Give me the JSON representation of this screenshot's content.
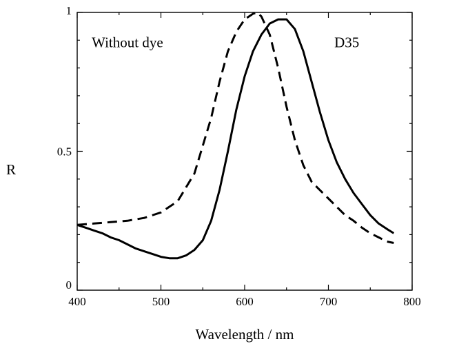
{
  "chart_data": {
    "type": "line",
    "title": "",
    "xlabel": "Wavelength / nm",
    "ylabel": "R",
    "xlim": [
      400,
      800
    ],
    "ylim": [
      0,
      1
    ],
    "x_ticks": [
      400,
      500,
      600,
      700,
      800
    ],
    "x_tick_labels": [
      "400",
      "500",
      "600",
      "700",
      "800"
    ],
    "y_ticks": [
      0,
      0.5,
      1
    ],
    "y_tick_labels": [
      "0",
      "0.5",
      "1"
    ],
    "grid": false,
    "legend": "none",
    "annotations": [
      {
        "text": "Without dye",
        "x": 460,
        "y": 0.875
      },
      {
        "text": "D35",
        "x": 722,
        "y": 0.875
      }
    ],
    "series": [
      {
        "style": "dashed",
        "color": "#000000",
        "x": [
          400,
          420,
          440,
          460,
          480,
          500,
          520,
          540,
          560,
          570,
          580,
          590,
          600,
          610,
          615,
          620,
          630,
          640,
          650,
          660,
          670,
          680,
          690,
          700,
          710,
          720,
          730,
          740,
          750,
          760,
          770,
          778
        ],
        "y": [
          0.235,
          0.24,
          0.245,
          0.25,
          0.26,
          0.28,
          0.32,
          0.42,
          0.62,
          0.75,
          0.86,
          0.93,
          0.975,
          0.995,
          1.0,
          0.985,
          0.92,
          0.8,
          0.66,
          0.54,
          0.45,
          0.39,
          0.36,
          0.33,
          0.3,
          0.27,
          0.25,
          0.225,
          0.205,
          0.19,
          0.175,
          0.17
        ]
      },
      {
        "style": "solid",
        "color": "#000000",
        "x": [
          400,
          410,
          420,
          430,
          440,
          450,
          460,
          470,
          480,
          490,
          500,
          510,
          520,
          530,
          540,
          550,
          560,
          570,
          580,
          590,
          600,
          610,
          620,
          630,
          640,
          650,
          660,
          670,
          680,
          690,
          700,
          710,
          720,
          730,
          740,
          750,
          760,
          770,
          778
        ],
        "y": [
          0.235,
          0.225,
          0.215,
          0.205,
          0.19,
          0.18,
          0.165,
          0.15,
          0.14,
          0.13,
          0.12,
          0.115,
          0.115,
          0.125,
          0.145,
          0.18,
          0.25,
          0.36,
          0.5,
          0.65,
          0.77,
          0.86,
          0.92,
          0.96,
          0.975,
          0.975,
          0.94,
          0.86,
          0.75,
          0.64,
          0.54,
          0.46,
          0.4,
          0.35,
          0.31,
          0.27,
          0.24,
          0.22,
          0.205
        ]
      }
    ]
  }
}
